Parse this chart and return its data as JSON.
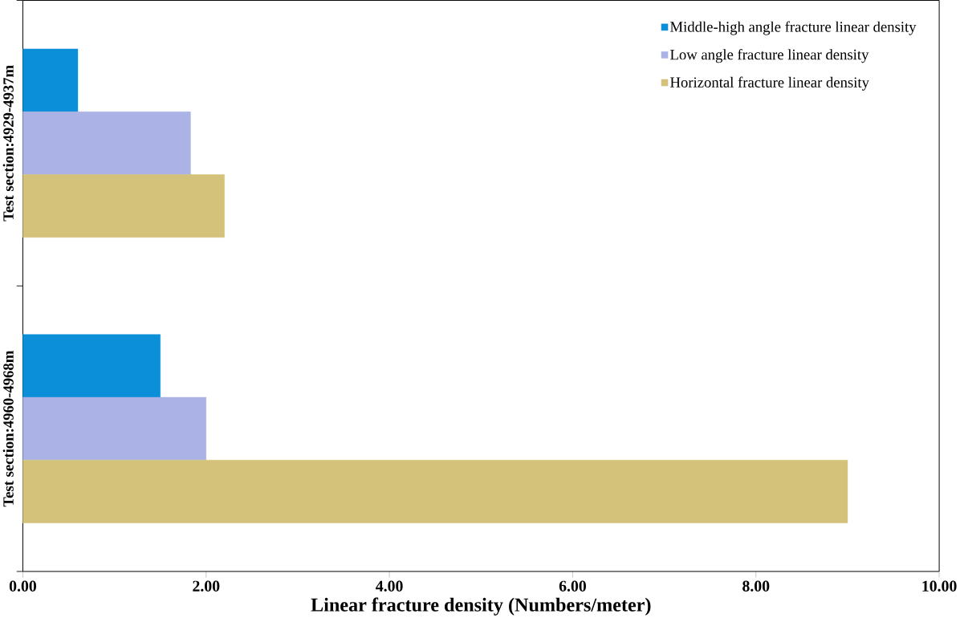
{
  "chart_data": {
    "type": "bar",
    "orientation": "horizontal",
    "xlabel": "Linear fracture density (Numbers/meter)",
    "categories": [
      "Test section:4929-4937m",
      "Test section:4960-4968m"
    ],
    "series": [
      {
        "name": "Middle-high angle fracture linear density",
        "color": "#0a8fd8",
        "values": [
          0.6,
          1.5
        ]
      },
      {
        "name": "Low angle fracture linear density",
        "color": "#aab2e6",
        "values": [
          1.83,
          2.0
        ]
      },
      {
        "name": "Horizontal fracture linear density",
        "color": "#d4c27a",
        "values": [
          2.2,
          9.0
        ]
      }
    ],
    "xlim": [
      0,
      10
    ],
    "xticks": [
      {
        "value": 0,
        "label": "0.00"
      },
      {
        "value": 2,
        "label": "2.00"
      },
      {
        "value": 4,
        "label": "4.00"
      },
      {
        "value": 6,
        "label": "6.00"
      },
      {
        "value": 8,
        "label": "8.00"
      },
      {
        "value": 10,
        "label": "10.00"
      }
    ],
    "legend": "top right",
    "grid": false
  }
}
